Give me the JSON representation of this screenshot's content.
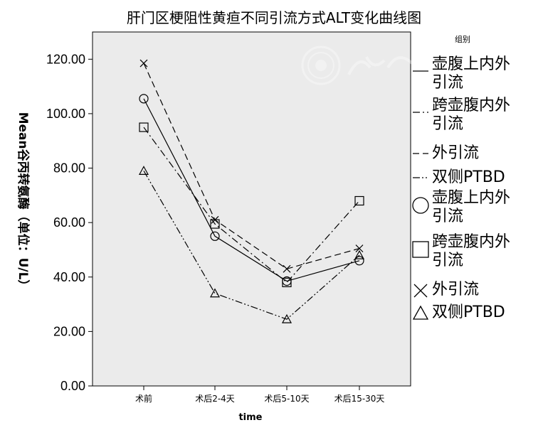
{
  "chart_data": {
    "type": "line",
    "title": "肝门区梗阻性黄疸不同引流方式ALT变化曲线图",
    "xlabel": "time",
    "ylabel": "Mean谷丙转氨酶（单位：U/L）",
    "categories": [
      "术前",
      "术后2-4天",
      "术后5-10天",
      "术后15-30天"
    ],
    "ylim": [
      0,
      130
    ],
    "yticks": [
      "0.00",
      "20.00",
      "40.00",
      "60.00",
      "80.00",
      "100.00",
      "120.00"
    ],
    "legend_title": "组别",
    "legend_placement": "right",
    "series": [
      {
        "name": "壶腹上内外引流",
        "values": [
          105.5,
          55,
          38.5,
          46
        ],
        "line_style": "solid",
        "marker": "circle"
      },
      {
        "name": "跨壶腹内外引流",
        "values": [
          95,
          59.5,
          38,
          68
        ],
        "line_style": "dash-dot",
        "marker": "square"
      },
      {
        "name": "外引流",
        "values": [
          118.5,
          61,
          43,
          50.5
        ],
        "line_style": "dashed",
        "marker": "cross"
      },
      {
        "name": "双侧PTBD",
        "values": [
          79,
          34,
          24.5,
          48
        ],
        "line_style": "dash-dot-dot",
        "marker": "triangle"
      }
    ],
    "grid": false,
    "plot_background": "#ebebeb"
  }
}
